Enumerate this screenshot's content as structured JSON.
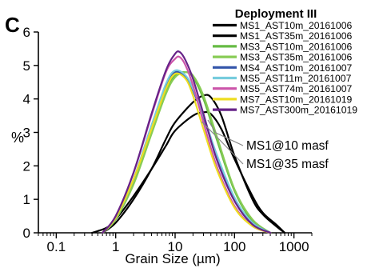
{
  "panel_label": "C",
  "chart_data": {
    "type": "line",
    "x_scale": "log",
    "xlabel": "Grain Size (µm)",
    "ylabel": "%",
    "xlim": [
      0.05,
      2000
    ],
    "ylim": [
      0,
      6
    ],
    "x_ticks": [
      0.1,
      1,
      10,
      100,
      1000
    ],
    "x_tick_labels": [
      "0.1",
      "1",
      "10",
      "100",
      "1000"
    ],
    "y_ticks": [
      0,
      1,
      2,
      3,
      4,
      5,
      6
    ],
    "y_tick_labels": [
      "0",
      "1",
      "2",
      "3",
      "4",
      "5",
      "6"
    ],
    "grid": false,
    "legend": {
      "title": "Deployment III",
      "placement": "top-right"
    },
    "series": [
      {
        "name": "MS1_AST10m_20161006",
        "color": "#000000",
        "points": [
          [
            0.4,
            0
          ],
          [
            0.7,
            0.15
          ],
          [
            1,
            0.4
          ],
          [
            2,
            1.1
          ],
          [
            4,
            1.9
          ],
          [
            7,
            2.6
          ],
          [
            10,
            3.05
          ],
          [
            20,
            3.5
          ],
          [
            30,
            3.6
          ],
          [
            40,
            3.55
          ],
          [
            60,
            3.1
          ],
          [
            100,
            2.2
          ],
          [
            200,
            1.1
          ],
          [
            300,
            0.6
          ],
          [
            500,
            0.25
          ],
          [
            700,
            0
          ]
        ]
      },
      {
        "name": "MS1_AST35m_20161006",
        "color": "#000000",
        "points": [
          [
            0.6,
            0
          ],
          [
            1,
            0.3
          ],
          [
            2,
            1.0
          ],
          [
            4,
            1.9
          ],
          [
            7,
            2.8
          ],
          [
            10,
            3.3
          ],
          [
            20,
            3.9
          ],
          [
            30,
            4.1
          ],
          [
            40,
            4.05
          ],
          [
            60,
            3.5
          ],
          [
            100,
            2.3
          ],
          [
            200,
            1.0
          ],
          [
            300,
            0.55
          ],
          [
            500,
            0.2
          ],
          [
            700,
            0
          ]
        ]
      },
      {
        "name": "MS3_AST10m_20161006",
        "color": "#66bb44",
        "points": [
          [
            0.6,
            0
          ],
          [
            1,
            0.4
          ],
          [
            2,
            1.5
          ],
          [
            4,
            3.0
          ],
          [
            7,
            4.2
          ],
          [
            10,
            4.7
          ],
          [
            15,
            4.8
          ],
          [
            20,
            4.65
          ],
          [
            30,
            4.0
          ],
          [
            50,
            2.8
          ],
          [
            100,
            1.25
          ],
          [
            200,
            0.35
          ],
          [
            400,
            0
          ]
        ]
      },
      {
        "name": "MS3_AST35m_20161006",
        "color": "#88cc55",
        "points": [
          [
            0.6,
            0
          ],
          [
            1,
            0.4
          ],
          [
            2,
            1.45
          ],
          [
            4,
            2.95
          ],
          [
            7,
            4.15
          ],
          [
            10,
            4.65
          ],
          [
            15,
            4.8
          ],
          [
            20,
            4.7
          ],
          [
            30,
            4.1
          ],
          [
            50,
            2.9
          ],
          [
            100,
            1.3
          ],
          [
            200,
            0.4
          ],
          [
            400,
            0
          ]
        ]
      },
      {
        "name": "MS4_AST10m_20161007",
        "color": "#3355aa",
        "points": [
          [
            0.6,
            0
          ],
          [
            1,
            0.45
          ],
          [
            2,
            1.6
          ],
          [
            4,
            3.2
          ],
          [
            7,
            4.4
          ],
          [
            10,
            4.8
          ],
          [
            15,
            4.65
          ],
          [
            20,
            4.25
          ],
          [
            30,
            3.45
          ],
          [
            50,
            2.3
          ],
          [
            100,
            1.0
          ],
          [
            200,
            0.3
          ],
          [
            400,
            0
          ]
        ]
      },
      {
        "name": "MS5_AST11m_20161007",
        "color": "#77ccdd",
        "points": [
          [
            0.6,
            0
          ],
          [
            1,
            0.45
          ],
          [
            2,
            1.6
          ],
          [
            4,
            3.2
          ],
          [
            7,
            4.45
          ],
          [
            10,
            4.85
          ],
          [
            15,
            4.7
          ],
          [
            20,
            4.3
          ],
          [
            30,
            3.5
          ],
          [
            50,
            2.35
          ],
          [
            100,
            1.05
          ],
          [
            200,
            0.3
          ],
          [
            400,
            0
          ]
        ]
      },
      {
        "name": "MS5_AST74m_20161007",
        "color": "#cc55aa",
        "points": [
          [
            0.6,
            0
          ],
          [
            1,
            0.5
          ],
          [
            2,
            1.8
          ],
          [
            4,
            3.5
          ],
          [
            7,
            4.8
          ],
          [
            10,
            5.2
          ],
          [
            12,
            5.25
          ],
          [
            15,
            5.0
          ],
          [
            20,
            4.4
          ],
          [
            30,
            3.3
          ],
          [
            50,
            2.0
          ],
          [
            100,
            0.8
          ],
          [
            200,
            0.2
          ],
          [
            400,
            0
          ]
        ]
      },
      {
        "name": "MS7_AST10m_20161019",
        "color": "#eedd22",
        "points": [
          [
            0.6,
            0
          ],
          [
            1,
            0.45
          ],
          [
            2,
            1.6
          ],
          [
            4,
            3.1
          ],
          [
            7,
            4.3
          ],
          [
            10,
            4.75
          ],
          [
            15,
            4.6
          ],
          [
            20,
            4.1
          ],
          [
            30,
            3.1
          ],
          [
            50,
            1.9
          ],
          [
            100,
            0.75
          ],
          [
            200,
            0.2
          ],
          [
            400,
            0
          ]
        ]
      },
      {
        "name": "MS7_AST300m_20161019",
        "color": "#662288",
        "points": [
          [
            0.6,
            0
          ],
          [
            1,
            0.5
          ],
          [
            2,
            1.8
          ],
          [
            4,
            3.55
          ],
          [
            7,
            4.85
          ],
          [
            10,
            5.35
          ],
          [
            12,
            5.4
          ],
          [
            15,
            5.15
          ],
          [
            20,
            4.6
          ],
          [
            30,
            3.55
          ],
          [
            50,
            2.2
          ],
          [
            100,
            0.95
          ],
          [
            200,
            0.25
          ],
          [
            400,
            0
          ]
        ]
      }
    ],
    "annotations": [
      {
        "text": "MS1@10 masf",
        "target_series": 0
      },
      {
        "text": "MS1@35 masf",
        "target_series": 1
      }
    ]
  }
}
